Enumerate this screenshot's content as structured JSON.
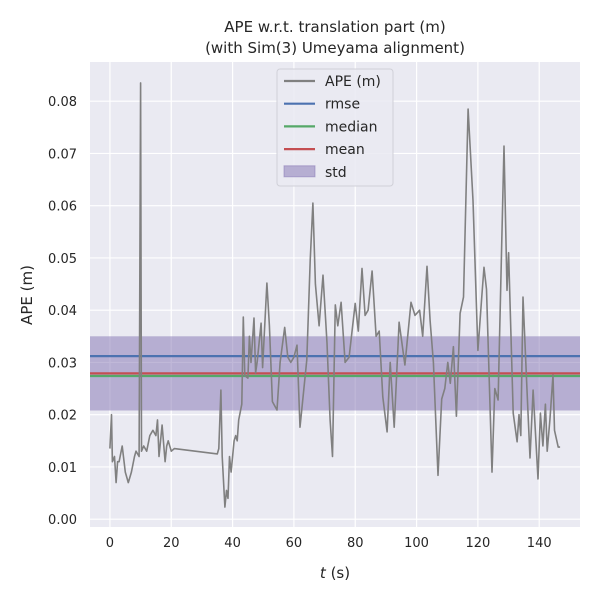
{
  "chart_data": {
    "type": "line",
    "title": "APE w.r.t. translation part (m)",
    "subtitle": "(with Sim(3) Umeyama alignment)",
    "xlabel_italic": "t",
    "xlabel_unit": " (s)",
    "ylabel": "APE (m)",
    "xlim": [
      -6.5,
      153.3
    ],
    "ylim": [
      -0.0015,
      0.0875
    ],
    "xticks": [
      0,
      20,
      40,
      60,
      80,
      100,
      120,
      140
    ],
    "yticks": [
      0.0,
      0.01,
      0.02,
      0.03,
      0.04,
      0.05,
      0.06,
      0.07,
      0.08
    ],
    "grid": true,
    "legend_position": "top-center",
    "stats": {
      "rmse": 0.0312,
      "median": 0.0274,
      "mean": 0.0279,
      "std": 0.0071
    },
    "colors": {
      "ape": "#808080",
      "rmse": "#4c72b0",
      "median": "#55a868",
      "mean": "#c44e52",
      "std": "#8172b2",
      "bg": "#eaeaf2"
    },
    "legend": [
      "APE (m)",
      "rmse",
      "median",
      "mean",
      "std"
    ],
    "series": [
      {
        "name": "APE (m)",
        "t": [
          0,
          0.5,
          0.8,
          1.5,
          2,
          2.5,
          3,
          4,
          5,
          6,
          7,
          8,
          8.5,
          9.5,
          10,
          10.3,
          11,
          12,
          13,
          14,
          15,
          15.5,
          16,
          17,
          18,
          18.5,
          19,
          20,
          21,
          35,
          35.5,
          36.2,
          36.6,
          37.5,
          38,
          38.5,
          39,
          39.5,
          40.5,
          41,
          41.5,
          42,
          43,
          43.5,
          44,
          45,
          45.5,
          46,
          47,
          47.5,
          48,
          49.3,
          49.8,
          51.2,
          52,
          53,
          54.5,
          55.5,
          57,
          58,
          59,
          60,
          61,
          62,
          64.2,
          65.3,
          66.2,
          67,
          68.2,
          69.5,
          70.8,
          71.8,
          72.6,
          73.5,
          74.3,
          75.4,
          76.7,
          78,
          80,
          81,
          82.2,
          83.2,
          84.2,
          85.5,
          86.8,
          87.8,
          89,
          90.4,
          91.4,
          92.7,
          94.3,
          96.2,
          98.2,
          99.5,
          101,
          102,
          103.4,
          104.4,
          105.5,
          107,
          108.2,
          109.2,
          110.2,
          111,
          112,
          113,
          114.2,
          115.3,
          116.8,
          118.4,
          120,
          121.3,
          122,
          122.8,
          124.6,
          125.5,
          126.6,
          127.5,
          128.5,
          129.5,
          130,
          131.5,
          132.8,
          133.4,
          134,
          134.7,
          136,
          137,
          138,
          139.6,
          140.4,
          141.2,
          142,
          142.6,
          143.5,
          144.5,
          145,
          146.2,
          146.8
        ],
        "values": [
          0.0135,
          0.02,
          0.011,
          0.012,
          0.007,
          0.011,
          0.011,
          0.014,
          0.009,
          0.007,
          0.009,
          0.012,
          0.013,
          0.012,
          0.0835,
          0.013,
          0.014,
          0.013,
          0.016,
          0.017,
          0.016,
          0.019,
          0.012,
          0.018,
          0.011,
          0.014,
          0.015,
          0.013,
          0.0135,
          0.0125,
          0.0135,
          0.0247,
          0.012,
          0.0023,
          0.0055,
          0.004,
          0.012,
          0.009,
          0.015,
          0.016,
          0.015,
          0.019,
          0.022,
          0.0387,
          0.0275,
          0.027,
          0.035,
          0.03,
          0.0385,
          0.028,
          0.03,
          0.0375,
          0.029,
          0.0452,
          0.037,
          0.0225,
          0.0209,
          0.03,
          0.0367,
          0.031,
          0.03,
          0.031,
          0.0333,
          0.0176,
          0.0305,
          0.0495,
          0.0605,
          0.045,
          0.037,
          0.0467,
          0.0337,
          0.019,
          0.012,
          0.041,
          0.037,
          0.0415,
          0.03,
          0.031,
          0.0413,
          0.036,
          0.048,
          0.039,
          0.04,
          0.0475,
          0.035,
          0.036,
          0.0234,
          0.0167,
          0.03,
          0.0176,
          0.0377,
          0.0295,
          0.0415,
          0.039,
          0.04,
          0.035,
          0.0484,
          0.038,
          0.03,
          0.0084,
          0.023,
          0.025,
          0.03,
          0.026,
          0.033,
          0.0197,
          0.0394,
          0.0425,
          0.0785,
          0.061,
          0.0323,
          0.0429,
          0.0482,
          0.044,
          0.009,
          0.025,
          0.0228,
          0.046,
          0.0714,
          0.0438,
          0.051,
          0.0203,
          0.0148,
          0.02,
          0.016,
          0.0425,
          0.0247,
          0.0117,
          0.0247,
          0.0077,
          0.0203,
          0.014,
          0.022,
          0.013,
          0.019,
          0.0276,
          0.017,
          0.0138,
          0.0138
        ]
      }
    ]
  }
}
